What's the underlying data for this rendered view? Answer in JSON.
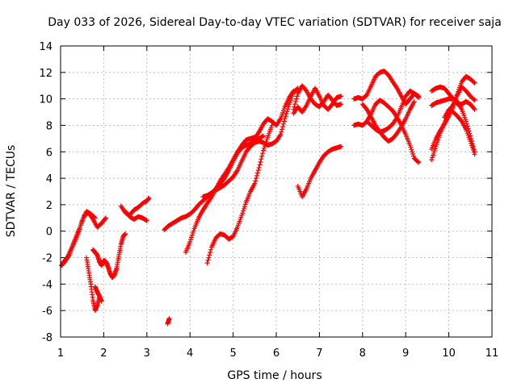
{
  "chart_data": {
    "type": "scatter",
    "title": "Day 033 of 2026, Sidereal Day-to-day VTEC variation (SDTVAR) for receiver saja",
    "xlabel": "GPS time / hours",
    "ylabel": "SDTVAR / TECUs",
    "xlim": [
      1,
      11
    ],
    "ylim": [
      -8,
      14
    ],
    "x_ticks": [
      1,
      2,
      3,
      4,
      5,
      6,
      7,
      8,
      9,
      10,
      11
    ],
    "y_ticks": [
      -8,
      -6,
      -4,
      -2,
      0,
      2,
      4,
      6,
      8,
      10,
      12,
      14
    ],
    "grid": true,
    "marker": "+",
    "color": "#ff0000",
    "series": [
      {
        "x": [
          1.02,
          1.1,
          1.2,
          1.3,
          1.4,
          1.5,
          1.6,
          1.7,
          1.8
        ],
        "y": [
          -2.6,
          -2.3,
          -1.8,
          -1.0,
          -0.2,
          0.8,
          1.5,
          1.3,
          1.0
        ]
      },
      {
        "x": [
          1.05,
          1.15,
          1.25,
          1.35,
          1.45,
          1.55,
          1.65,
          1.75,
          1.85,
          1.95,
          2.05
        ],
        "y": [
          -2.4,
          -2.0,
          -1.3,
          -0.5,
          0.3,
          1.2,
          1.4,
          0.9,
          0.3,
          0.6,
          1.0
        ]
      },
      {
        "x": [
          1.6,
          1.65,
          1.7,
          1.75,
          1.8,
          1.85,
          1.9
        ],
        "y": [
          -2.0,
          -3.0,
          -4.0,
          -5.2,
          -6.0,
          -5.6,
          -5.0
        ]
      },
      {
        "x": [
          1.75,
          1.8,
          1.85,
          1.9,
          1.95,
          2.0,
          2.05,
          2.1,
          2.15,
          2.2,
          2.25,
          2.3,
          2.35,
          2.4,
          2.45,
          2.5
        ],
        "y": [
          -1.4,
          -1.6,
          -1.8,
          -2.3,
          -2.6,
          -2.2,
          -2.3,
          -2.7,
          -3.2,
          -3.5,
          -3.3,
          -2.8,
          -1.9,
          -1.0,
          -0.4,
          -0.2
        ]
      },
      {
        "x": [
          1.8,
          1.85,
          1.9,
          1.95
        ],
        "y": [
          -4.2,
          -4.6,
          -4.9,
          -5.3
        ]
      },
      {
        "x": [
          2.4,
          2.5,
          2.6,
          2.7,
          2.8,
          2.9,
          3.0,
          3.05
        ],
        "y": [
          1.9,
          1.4,
          1.2,
          1.6,
          1.8,
          2.1,
          2.3,
          2.5
        ]
      },
      {
        "x": [
          2.5,
          2.6,
          2.7,
          2.8,
          2.9,
          3.0
        ],
        "y": [
          1.5,
          1.1,
          0.9,
          1.1,
          1.0,
          0.8
        ]
      },
      {
        "x": [
          3.48,
          3.52
        ],
        "y": [
          -7.0,
          -6.6
        ]
      },
      {
        "x": [
          3.4,
          3.5,
          3.6,
          3.7,
          3.8,
          3.9,
          4.0,
          4.1,
          4.2,
          4.3,
          4.4,
          4.5,
          4.6,
          4.7,
          4.8,
          4.9,
          5.0,
          5.1,
          5.2,
          5.3,
          5.4,
          5.5,
          5.6,
          5.7,
          5.8,
          5.9,
          6.0,
          6.1,
          6.2,
          6.3,
          6.4,
          6.5
        ],
        "y": [
          0.1,
          0.4,
          0.6,
          0.8,
          1.0,
          1.1,
          1.3,
          1.6,
          2.0,
          2.3,
          2.6,
          2.9,
          3.1,
          3.3,
          3.5,
          3.8,
          4.1,
          4.6,
          5.3,
          6.0,
          6.4,
          6.7,
          6.8,
          6.7,
          6.5,
          6.6,
          6.8,
          7.3,
          8.5,
          9.6,
          10.5,
          10.8
        ]
      },
      {
        "x": [
          3.9,
          4.0,
          4.1,
          4.2,
          4.3,
          4.4,
          4.5,
          4.6,
          4.7,
          4.8,
          4.9,
          5.0,
          5.1,
          5.2,
          5.3,
          5.4,
          5.5,
          5.6,
          5.7
        ],
        "y": [
          -1.6,
          -0.8,
          0.2,
          1.0,
          1.6,
          2.1,
          2.6,
          3.2,
          3.8,
          4.3,
          4.8,
          5.4,
          6.0,
          6.5,
          6.9,
          7.0,
          7.1,
          7.0,
          7.2
        ]
      },
      {
        "x": [
          4.3,
          4.4,
          4.5,
          4.6,
          4.7,
          4.8,
          4.9,
          5.0,
          5.1,
          5.2,
          5.3,
          5.4,
          5.5,
          5.6,
          5.7,
          5.8,
          5.9,
          6.0,
          6.1,
          6.2,
          6.3,
          6.4
        ],
        "y": [
          2.6,
          2.7,
          2.9,
          3.2,
          3.6,
          4.0,
          4.6,
          5.3,
          5.9,
          6.3,
          6.5,
          6.6,
          7.0,
          7.5,
          8.1,
          8.5,
          8.3,
          8.0,
          8.5,
          9.4,
          10.1,
          10.6
        ]
      },
      {
        "x": [
          4.4,
          4.5,
          4.6,
          4.7,
          4.8,
          4.9,
          5.0,
          5.1,
          5.2,
          5.3,
          5.4,
          5.5,
          5.6,
          5.7,
          5.8,
          5.9
        ],
        "y": [
          -2.4,
          -1.2,
          -0.5,
          -0.2,
          -0.3,
          -0.6,
          -0.4,
          0.3,
          1.2,
          2.2,
          3.0,
          3.6,
          4.8,
          6.1,
          7.1,
          8.0
        ]
      },
      {
        "x": [
          6.5,
          6.6,
          6.7,
          6.8,
          6.9,
          7.0,
          7.1,
          7.2,
          7.3,
          7.4,
          7.5
        ],
        "y": [
          3.4,
          2.6,
          3.2,
          4.0,
          4.6,
          5.2,
          5.7,
          6.0,
          6.2,
          6.3,
          6.4
        ]
      },
      {
        "x": [
          6.4,
          6.5,
          6.6,
          6.7,
          6.8,
          6.9,
          7.0,
          7.1,
          7.2,
          7.3,
          7.4,
          7.5
        ],
        "y": [
          9.2,
          10.4,
          11.0,
          10.6,
          10.0,
          9.6,
          9.4,
          9.8,
          10.3,
          9.9,
          9.5,
          9.6
        ]
      },
      {
        "x": [
          6.4,
          6.5,
          6.6,
          6.7,
          6.8,
          6.9,
          7.0,
          7.1,
          7.2,
          7.3,
          7.4,
          7.5
        ],
        "y": [
          8.9,
          9.4,
          9.0,
          9.5,
          10.2,
          10.8,
          10.2,
          9.5,
          9.2,
          9.6,
          10.1,
          10.2
        ]
      },
      {
        "x": [
          7.8,
          7.9,
          8.0,
          8.1,
          8.2,
          8.3,
          8.4,
          8.5,
          8.6,
          8.7,
          8.8,
          8.9,
          9.0,
          9.1,
          9.2,
          9.3
        ],
        "y": [
          10.0,
          10.1,
          10.0,
          10.3,
          11.0,
          11.7,
          12.0,
          12.1,
          11.8,
          11.3,
          10.8,
          10.2,
          9.6,
          10.0,
          10.4,
          10.2
        ]
      },
      {
        "x": [
          7.8,
          7.9,
          8.0,
          8.1,
          8.2,
          8.3,
          8.4,
          8.5,
          8.6,
          8.7,
          8.8,
          8.9,
          9.0,
          9.1,
          9.2,
          9.3
        ],
        "y": [
          8.0,
          8.1,
          8.0,
          8.3,
          8.9,
          9.6,
          9.9,
          9.7,
          9.4,
          9.1,
          8.6,
          8.0,
          7.3,
          6.5,
          5.5,
          5.2
        ]
      },
      {
        "x": [
          8.0,
          8.1,
          8.2,
          8.3,
          8.4,
          8.5,
          8.6,
          8.7,
          8.8,
          8.9,
          9.0,
          9.1,
          9.2
        ],
        "y": [
          9.6,
          9.2,
          8.6,
          8.0,
          7.5,
          7.1,
          6.8,
          7.0,
          7.4,
          7.9,
          8.5,
          9.2,
          9.8
        ]
      },
      {
        "x": [
          8.1,
          8.2,
          8.3,
          8.4,
          8.5,
          8.6,
          8.7,
          8.8,
          8.9,
          9.0,
          9.1,
          9.2,
          9.3
        ],
        "y": [
          8.3,
          8.0,
          7.7,
          7.5,
          7.6,
          7.8,
          8.1,
          8.6,
          9.4,
          10.2,
          10.6,
          10.4,
          10.1
        ]
      },
      {
        "x": [
          9.6,
          9.7,
          9.8,
          9.9,
          10.0,
          10.1,
          10.2,
          10.3,
          10.4,
          10.5,
          10.6
        ],
        "y": [
          5.4,
          6.4,
          7.4,
          8.2,
          9.0,
          9.6,
          10.4,
          11.3,
          11.7,
          11.5,
          11.2
        ]
      },
      {
        "x": [
          9.6,
          9.7,
          9.8,
          9.9,
          10.0,
          10.1,
          10.2,
          10.3,
          10.4,
          10.5,
          10.6
        ],
        "y": [
          6.2,
          7.0,
          7.6,
          8.1,
          8.7,
          9.4,
          10.3,
          10.9,
          10.6,
          10.2,
          9.9
        ]
      },
      {
        "x": [
          9.6,
          9.7,
          9.8,
          9.9,
          10.0,
          10.1,
          10.2,
          10.3,
          10.4,
          10.5,
          10.6
        ],
        "y": [
          10.6,
          10.8,
          10.9,
          10.8,
          10.4,
          10.0,
          9.6,
          9.6,
          9.8,
          9.6,
          9.2
        ]
      },
      {
        "x": [
          9.6,
          9.7,
          9.8,
          9.9,
          10.0,
          10.1,
          10.2,
          10.3,
          10.4,
          10.5,
          10.6
        ],
        "y": [
          9.5,
          9.7,
          9.8,
          9.9,
          10.0,
          10.0,
          9.8,
          9.2,
          8.3,
          7.2,
          6.0
        ]
      },
      {
        "x": [
          9.9,
          10.0,
          10.1,
          10.2,
          10.3,
          10.4,
          10.5,
          10.6
        ],
        "y": [
          8.6,
          9.2,
          9.0,
          8.7,
          8.3,
          7.7,
          6.8,
          5.8
        ]
      }
    ]
  }
}
